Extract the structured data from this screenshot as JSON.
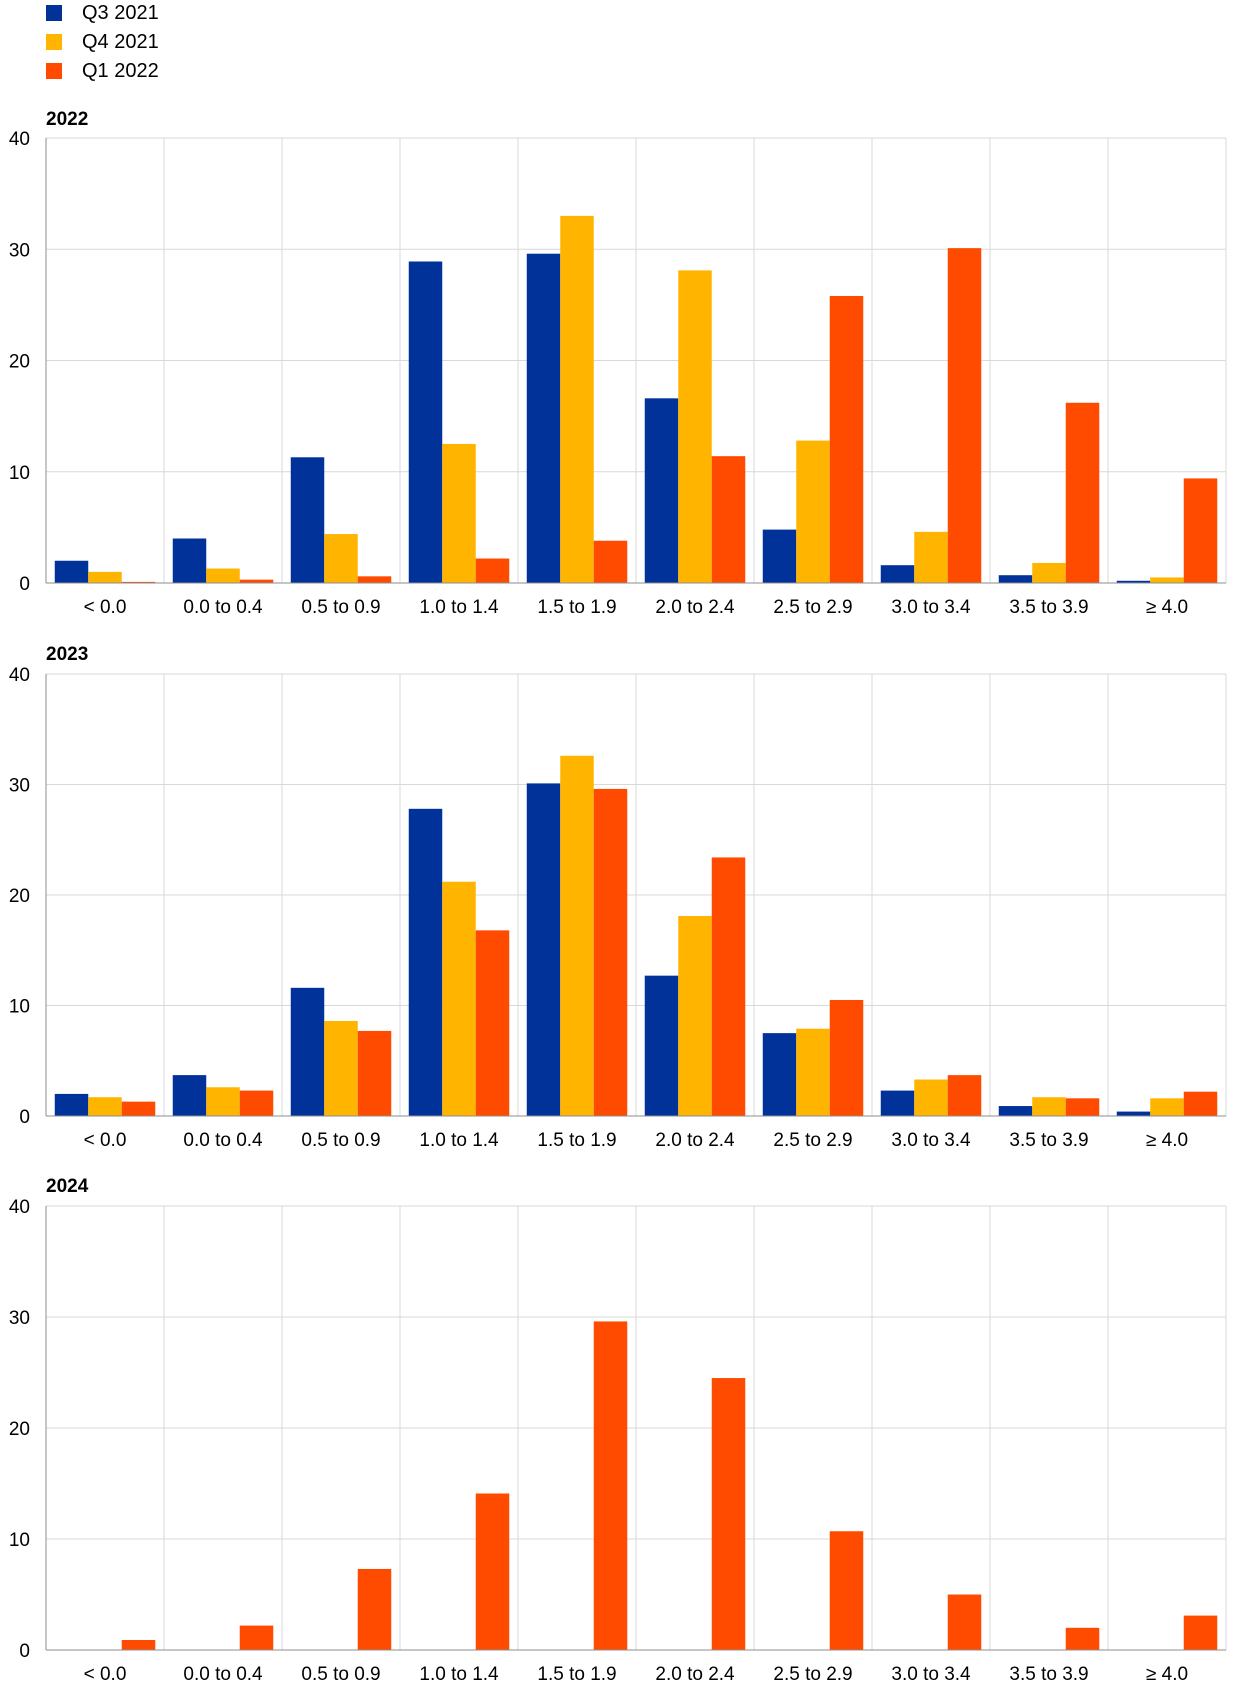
{
  "legend": [
    {
      "label": "Q3 2021",
      "color": "#003299"
    },
    {
      "label": "Q4 2021",
      "color": "#FFB400"
    },
    {
      "label": "Q1 2022",
      "color": "#FF4B00"
    }
  ],
  "chart_data": [
    {
      "type": "bar",
      "title": "2022",
      "categories": [
        "< 0.0",
        "0.0 to 0.4",
        "0.5 to 0.9",
        "1.0 to 1.4",
        "1.5 to 1.9",
        "2.0 to 2.4",
        "2.5 to 2.9",
        "3.0 to 3.4",
        "3.5 to 3.9",
        "≥ 4.0"
      ],
      "ylim": [
        0,
        40
      ],
      "yticks": [
        0,
        10,
        20,
        30,
        40
      ],
      "grid": true,
      "series": [
        {
          "name": "Q3 2021",
          "color": "#003299",
          "values": [
            2.0,
            4.0,
            11.3,
            28.9,
            29.6,
            16.6,
            4.8,
            1.6,
            0.7,
            0.2
          ]
        },
        {
          "name": "Q4 2021",
          "color": "#FFB400",
          "values": [
            1.0,
            1.3,
            4.4,
            12.5,
            33.0,
            28.1,
            12.8,
            4.6,
            1.8,
            0.5
          ]
        },
        {
          "name": "Q1 2022",
          "color": "#FF4B00",
          "values": [
            0.1,
            0.3,
            0.6,
            2.2,
            3.8,
            11.4,
            25.8,
            30.1,
            16.2,
            9.4
          ]
        }
      ]
    },
    {
      "type": "bar",
      "title": "2023",
      "categories": [
        "< 0.0",
        "0.0 to 0.4",
        "0.5 to 0.9",
        "1.0 to 1.4",
        "1.5 to 1.9",
        "2.0 to 2.4",
        "2.5 to 2.9",
        "3.0 to 3.4",
        "3.5 to 3.9",
        "≥ 4.0"
      ],
      "ylim": [
        0,
        40
      ],
      "yticks": [
        0,
        10,
        20,
        30,
        40
      ],
      "grid": true,
      "series": [
        {
          "name": "Q3 2021",
          "color": "#003299",
          "values": [
            2.0,
            3.7,
            11.6,
            27.8,
            30.1,
            12.7,
            7.5,
            2.3,
            0.9,
            0.4
          ]
        },
        {
          "name": "Q4 2021",
          "color": "#FFB400",
          "values": [
            1.7,
            2.6,
            8.6,
            21.2,
            32.6,
            18.1,
            7.9,
            3.3,
            1.7,
            1.6
          ]
        },
        {
          "name": "Q1 2022",
          "color": "#FF4B00",
          "values": [
            1.3,
            2.3,
            7.7,
            16.8,
            29.6,
            23.4,
            10.5,
            3.7,
            1.6,
            2.2
          ]
        }
      ]
    },
    {
      "type": "bar",
      "title": "2024",
      "categories": [
        "< 0.0",
        "0.0 to 0.4",
        "0.5 to 0.9",
        "1.0 to 1.4",
        "1.5 to 1.9",
        "2.0 to 2.4",
        "2.5 to 2.9",
        "3.0 to 3.4",
        "3.5 to 3.9",
        "≥ 4.0"
      ],
      "ylim": [
        0,
        40
      ],
      "yticks": [
        0,
        10,
        20,
        30,
        40
      ],
      "grid": true,
      "series": [
        {
          "name": "Q3 2021",
          "color": "#003299",
          "values": [
            null,
            null,
            null,
            null,
            null,
            null,
            null,
            null,
            null,
            null
          ]
        },
        {
          "name": "Q4 2021",
          "color": "#FFB400",
          "values": [
            null,
            null,
            null,
            null,
            null,
            null,
            null,
            null,
            null,
            null
          ]
        },
        {
          "name": "Q1 2022",
          "color": "#FF4B00",
          "values": [
            0.9,
            2.2,
            7.3,
            14.1,
            29.6,
            24.5,
            10.7,
            5.0,
            2.0,
            3.1
          ]
        }
      ]
    }
  ]
}
